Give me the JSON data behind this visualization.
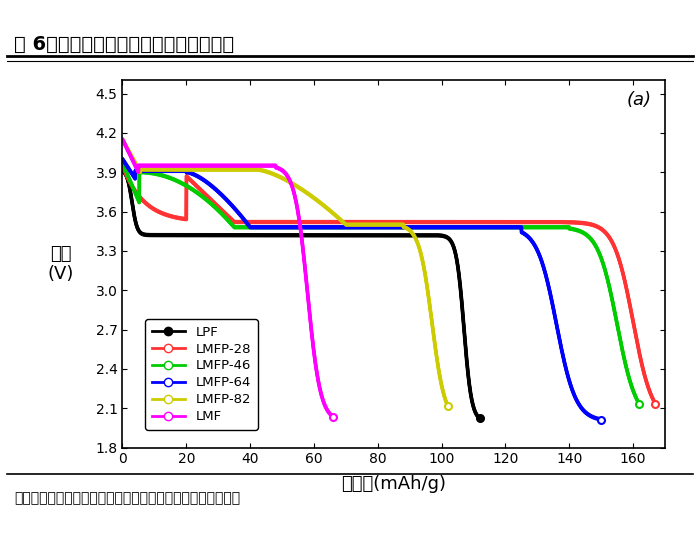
{
  "title": "图 6：不同锰铁比例下放电电压平台对比",
  "xlabel": "克容量(mAh/g)",
  "ylabel": "电压\n(V)",
  "xlim": [
    0,
    170
  ],
  "ylim": [
    1.8,
    4.6
  ],
  "yticks": [
    1.8,
    2.1,
    2.4,
    2.7,
    3.0,
    3.3,
    3.6,
    3.9,
    4.2,
    4.5
  ],
  "xticks": [
    0,
    20,
    40,
    60,
    80,
    100,
    120,
    140,
    160
  ],
  "annotation": "(a)",
  "source_text": "资料来源：《橄榄石型锂离子电池正极材料的制备技术及电池",
  "bg_color": "#ffffff",
  "plot_bg": "#ffffff",
  "series": [
    {
      "label": "LPF",
      "color": "#000000",
      "filled_marker": true,
      "end_x": 110,
      "end_y": 2.05
    },
    {
      "label": "LMFP-28",
      "color": "#ff3333",
      "filled_marker": false,
      "end_x": 165,
      "end_y": 2.05
    },
    {
      "label": "LMFP-46",
      "color": "#00cc00",
      "filled_marker": false,
      "end_x": 160,
      "end_y": 2.05
    },
    {
      "label": "LMFP-64",
      "color": "#0000ff",
      "filled_marker": false,
      "end_x": 148,
      "end_y": 2.05
    },
    {
      "label": "LMFP-82",
      "color": "#cccc00",
      "filled_marker": false,
      "end_x": 100,
      "end_y": 2.05
    },
    {
      "label": "LMF",
      "color": "#ff00ff",
      "filled_marker": false,
      "end_x": 65,
      "end_y": 2.0
    }
  ]
}
